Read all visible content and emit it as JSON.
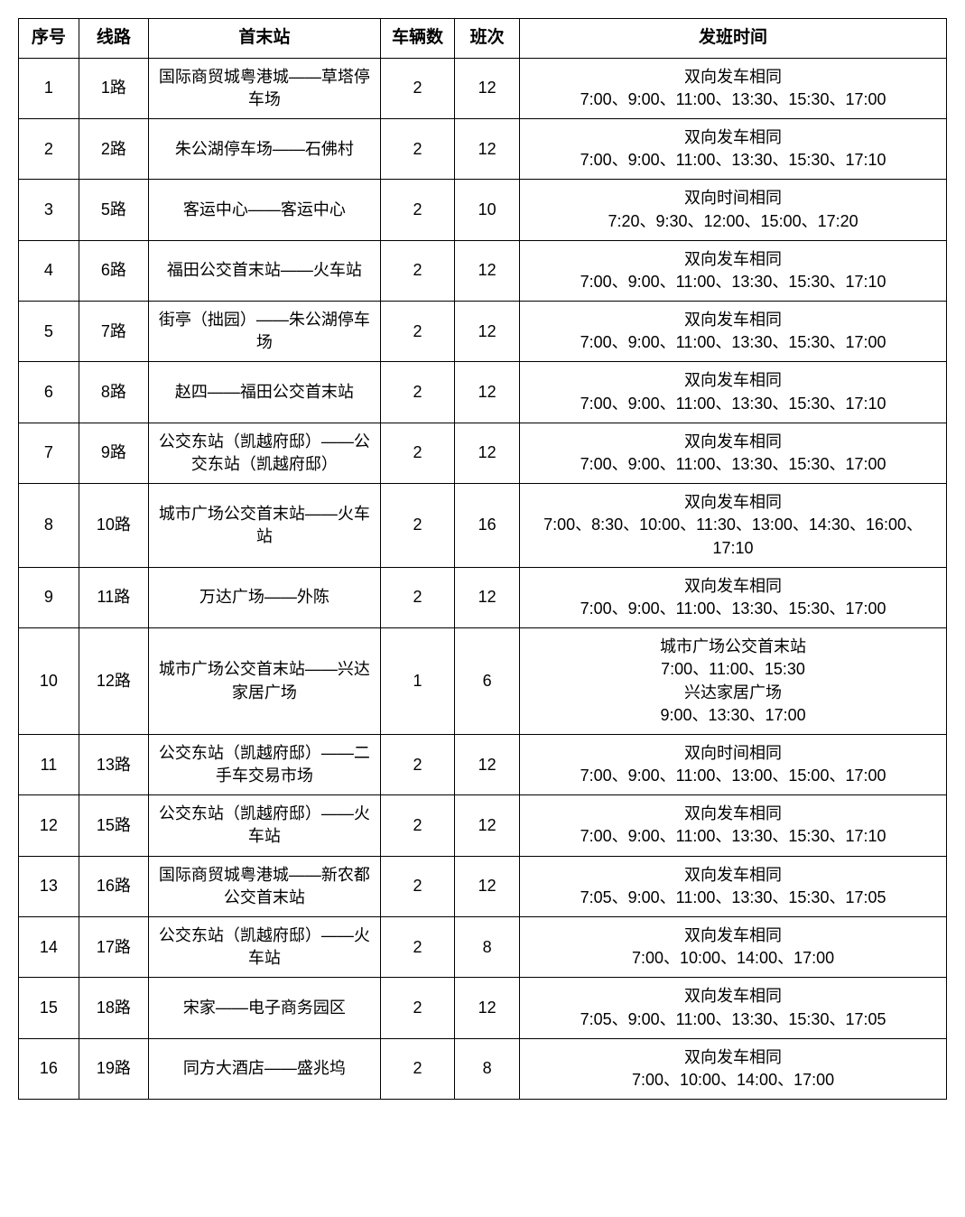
{
  "table": {
    "columns": [
      "序号",
      "线路",
      "首末站",
      "车辆数",
      "班次",
      "发班时间"
    ],
    "column_widths_pct": [
      6.5,
      7.5,
      25,
      8,
      7,
      46
    ],
    "header_fontsize": 19,
    "cell_fontsize": 18,
    "border_color": "#000000",
    "background_color": "#ffffff",
    "text_color": "#000000",
    "rows": [
      {
        "seq": "1",
        "route": "1路",
        "stations": "国际商贸城粤港城——草塔停车场",
        "vehicles": "2",
        "trips": "12",
        "schedule": "双向发车相同\n7:00、9:00、11:00、13:30、15:30、17:00"
      },
      {
        "seq": "2",
        "route": "2路",
        "stations": "朱公湖停车场——石佛村",
        "vehicles": "2",
        "trips": "12",
        "schedule": "双向发车相同\n7:00、9:00、11:00、13:30、15:30、17:10"
      },
      {
        "seq": "3",
        "route": "5路",
        "stations": "客运中心——客运中心",
        "vehicles": "2",
        "trips": "10",
        "schedule": "双向时间相同\n7:20、9:30、12:00、15:00、17:20"
      },
      {
        "seq": "4",
        "route": "6路",
        "stations": "福田公交首末站——火车站",
        "vehicles": "2",
        "trips": "12",
        "schedule": "双向发车相同\n7:00、9:00、11:00、13:30、15:30、17:10"
      },
      {
        "seq": "5",
        "route": "7路",
        "stations": "街亭（拙园）——朱公湖停车场",
        "vehicles": "2",
        "trips": "12",
        "schedule": "双向发车相同\n7:00、9:00、11:00、13:30、15:30、17:00"
      },
      {
        "seq": "6",
        "route": "8路",
        "stations": "赵四——福田公交首末站",
        "vehicles": "2",
        "trips": "12",
        "schedule": "双向发车相同\n7:00、9:00、11:00、13:30、15:30、17:10"
      },
      {
        "seq": "7",
        "route": "9路",
        "stations": "公交东站（凯越府邸）——公交东站（凯越府邸）",
        "vehicles": "2",
        "trips": "12",
        "schedule": "双向发车相同\n7:00、9:00、11:00、13:30、15:30、17:00"
      },
      {
        "seq": "8",
        "route": "10路",
        "stations": "城市广场公交首末站——火车站",
        "vehicles": "2",
        "trips": "16",
        "schedule": "双向发车相同\n7:00、8:30、10:00、11:30、13:00、14:30、16:00、17:10"
      },
      {
        "seq": "9",
        "route": "11路",
        "stations": "万达广场——外陈",
        "vehicles": "2",
        "trips": "12",
        "schedule": "双向发车相同\n7:00、9:00、11:00、13:30、15:30、17:00"
      },
      {
        "seq": "10",
        "route": "12路",
        "stations": "城市广场公交首末站——兴达家居广场",
        "vehicles": "1",
        "trips": "6",
        "schedule": "城市广场公交首末站\n7:00、11:00、15:30\n兴达家居广场\n9:00、13:30、17:00"
      },
      {
        "seq": "11",
        "route": "13路",
        "stations": "公交东站（凯越府邸）——二手车交易市场",
        "vehicles": "2",
        "trips": "12",
        "schedule": "双向时间相同\n7:00、9:00、11:00、13:00、15:00、17:00"
      },
      {
        "seq": "12",
        "route": "15路",
        "stations": "公交东站（凯越府邸）——火车站",
        "vehicles": "2",
        "trips": "12",
        "schedule": "双向发车相同\n7:00、9:00、11:00、13:30、15:30、17:10"
      },
      {
        "seq": "13",
        "route": "16路",
        "stations": "国际商贸城粤港城——新农都公交首末站",
        "vehicles": "2",
        "trips": "12",
        "schedule": "双向发车相同\n7:05、9:00、11:00、13:30、15:30、17:05"
      },
      {
        "seq": "14",
        "route": "17路",
        "stations": "公交东站（凯越府邸）——火车站",
        "vehicles": "2",
        "trips": "8",
        "schedule": "双向发车相同\n7:00、10:00、14:00、17:00"
      },
      {
        "seq": "15",
        "route": "18路",
        "stations": "宋家——电子商务园区",
        "vehicles": "2",
        "trips": "12",
        "schedule": "双向发车相同\n7:05、9:00、11:00、13:30、15:30、17:05"
      },
      {
        "seq": "16",
        "route": "19路",
        "stations": "同方大酒店——盛兆坞",
        "vehicles": "2",
        "trips": "8",
        "schedule": "双向发车相同\n7:00、10:00、14:00、17:00"
      }
    ]
  }
}
